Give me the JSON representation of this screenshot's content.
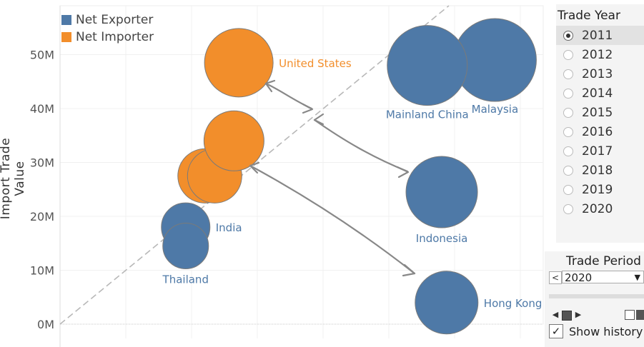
{
  "chart_data": {
    "type": "scatter",
    "ylabel": "Import Trade Value",
    "y_ticks": [
      "0M",
      "10M",
      "20M",
      "30M",
      "40M",
      "50M"
    ],
    "ylim": [
      0,
      58
    ],
    "xlim": [
      0,
      100
    ],
    "grid": true,
    "legend": [
      {
        "name": "Net Exporter",
        "color": "#4e79a7"
      },
      {
        "name": "Net Importer",
        "color": "#f28e2b"
      }
    ],
    "points": [
      {
        "label": "United States",
        "x": 37,
        "y": 48.5,
        "size": 48,
        "group": "Net Importer"
      },
      {
        "label": "",
        "x": 30,
        "y": 27.5,
        "size": 38,
        "group": "Net Importer"
      },
      {
        "label": "",
        "x": 32,
        "y": 27.5,
        "size": 38,
        "group": "Net Importer"
      },
      {
        "label": "",
        "x": 36,
        "y": 34,
        "size": 42,
        "group": "Net Importer"
      },
      {
        "label": "Malaysia",
        "x": 90,
        "y": 49,
        "size": 58,
        "group": "Net Exporter"
      },
      {
        "label": "Mainland China",
        "x": 76,
        "y": 48,
        "size": 56,
        "group": "Net Exporter"
      },
      {
        "label": "Indonesia",
        "x": 79,
        "y": 24.5,
        "size": 50,
        "group": "Net Exporter"
      },
      {
        "label": "India",
        "x": 26,
        "y": 18,
        "size": 34,
        "group": "Net Exporter"
      },
      {
        "label": "Thailand",
        "x": 26,
        "y": 14.5,
        "size": 32,
        "group": "Net Exporter"
      },
      {
        "label": "Hong Kong",
        "x": 80,
        "y": 4,
        "size": 44,
        "group": "Net Exporter"
      }
    ]
  },
  "filters": {
    "trade_year": {
      "title": "Trade Year",
      "options": [
        "2011",
        "2012",
        "2013",
        "2014",
        "2015",
        "2016",
        "2017",
        "2018",
        "2019",
        "2020"
      ],
      "selected": "2011"
    },
    "trade_period": {
      "title": "Trade Period",
      "value": "2020",
      "prev_symbol": "<",
      "show_history_label": "Show history",
      "show_history_checked": true
    }
  }
}
